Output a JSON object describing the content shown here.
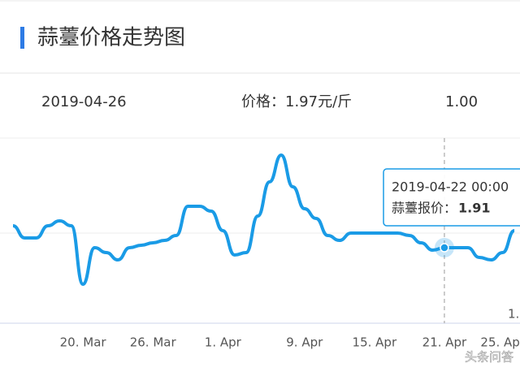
{
  "header": {
    "title": "蒜薹价格走势图",
    "date": "2019-04-26",
    "price": "价格：1.97元/斤",
    "change": "1.00"
  },
  "chart_data": {
    "type": "line",
    "color": "#1a9be6",
    "categories": [
      null,
      null,
      null,
      null,
      null,
      null,
      "20. Mar",
      null,
      null,
      null,
      null,
      null,
      "26. Mar",
      null,
      null,
      null,
      null,
      null,
      "1. Apr",
      null,
      null,
      null,
      null,
      null,
      null,
      "9. Apr",
      null,
      null,
      null,
      null,
      null,
      "15. Apr",
      null,
      null,
      null,
      null,
      null,
      "21. Apr",
      null,
      null,
      null,
      null,
      "25. Apr",
      null
    ],
    "values": [
      2.0,
      1.95,
      1.95,
      2.0,
      2.02,
      2.0,
      1.76,
      1.91,
      1.89,
      1.86,
      1.91,
      1.92,
      1.93,
      1.94,
      1.96,
      2.08,
      2.08,
      2.06,
      1.98,
      1.88,
      1.89,
      2.04,
      2.18,
      2.29,
      2.16,
      2.07,
      2.03,
      1.96,
      1.94,
      1.97,
      1.97,
      1.97,
      1.97,
      1.97,
      1.96,
      1.93,
      1.9,
      1.91,
      1.91,
      1.91,
      1.87,
      1.86,
      1.89,
      1.98
    ],
    "ylim": [
      1.6,
      2.36
    ],
    "tooltip": {
      "date": "2019-04-22 00:00",
      "label": "蒜薹报价：",
      "index": 37
    },
    "annotations": [
      "1."
    ]
  },
  "watermark": "头条问答"
}
